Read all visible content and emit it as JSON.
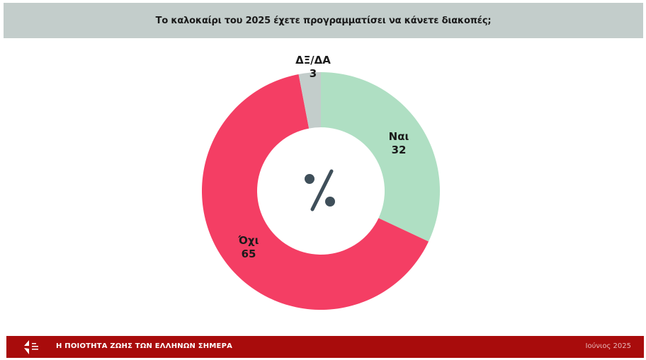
{
  "header": {
    "title": "Το καλοκαίρι του 2025 έχετε προγραμματίσει να κάνετε διακοπές;"
  },
  "center_icon": "percent-icon",
  "footer": {
    "brand": "Η ΠΟΙΟΤΗΤΑ ΖΩΗΣ ΤΩΝ ΕΛΛΗΝΩΝ ΣΗΜΕΡΑ",
    "date": "Ιούνιος 2025",
    "color": "#a80c0c"
  },
  "chart_data": {
    "type": "pie",
    "title": "Το καλοκαίρι του 2025 έχετε προγραμματίσει να κάνετε διακοπές;",
    "unit": "%",
    "donut": true,
    "categories": [
      "Ναι",
      "Όχι",
      "ΔΞ/ΔΑ"
    ],
    "values": [
      32,
      65,
      3
    ],
    "colors": [
      "#afdfc3",
      "#f43e64",
      "#c3cdcb"
    ]
  },
  "labels": {
    "yes": {
      "name": "Ναι",
      "value": "32"
    },
    "no": {
      "name": "Όχι",
      "value": "65"
    },
    "dk": {
      "name": "ΔΞ/ΔΑ",
      "value": "3"
    }
  }
}
